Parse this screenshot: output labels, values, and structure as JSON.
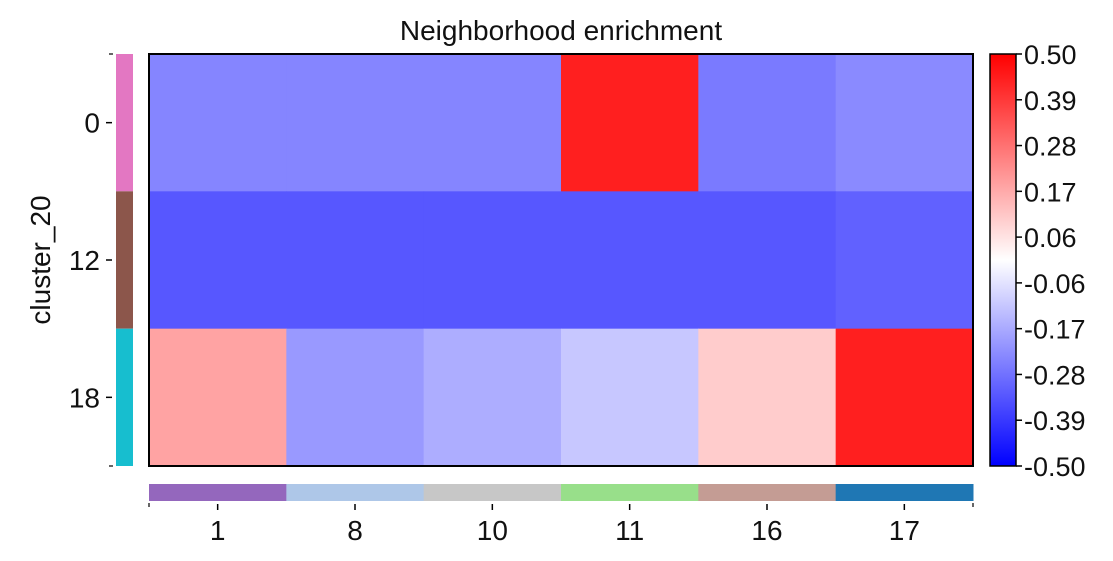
{
  "chart_data": {
    "type": "heatmap",
    "title": "Neighborhood enrichment",
    "ylabel": "cluster_20",
    "xlabel": "",
    "rows": [
      "0",
      "12",
      "18"
    ],
    "columns": [
      "1",
      "8",
      "10",
      "11",
      "16",
      "17"
    ],
    "values": [
      [
        -0.24,
        -0.24,
        -0.24,
        0.44,
        -0.26,
        -0.23
      ],
      [
        -0.33,
        -0.33,
        -0.33,
        -0.33,
        -0.33,
        -0.31
      ],
      [
        0.18,
        -0.2,
        -0.16,
        -0.11,
        0.1,
        0.44
      ]
    ],
    "row_colors": [
      "#e377c2",
      "#8c564b",
      "#17becf"
    ],
    "column_colors": [
      "#9467bd",
      "#aec7e8",
      "#c7c7c7",
      "#98df8a",
      "#c49c94",
      "#1f77b4"
    ],
    "colorbar": {
      "min": -0.5,
      "max": 0.5,
      "ticks": [
        "0.50",
        "0.39",
        "0.28",
        "0.17",
        "0.06",
        "-0.06",
        "-0.17",
        "-0.28",
        "-0.39",
        "-0.50"
      ],
      "colormap": "bwr"
    }
  }
}
